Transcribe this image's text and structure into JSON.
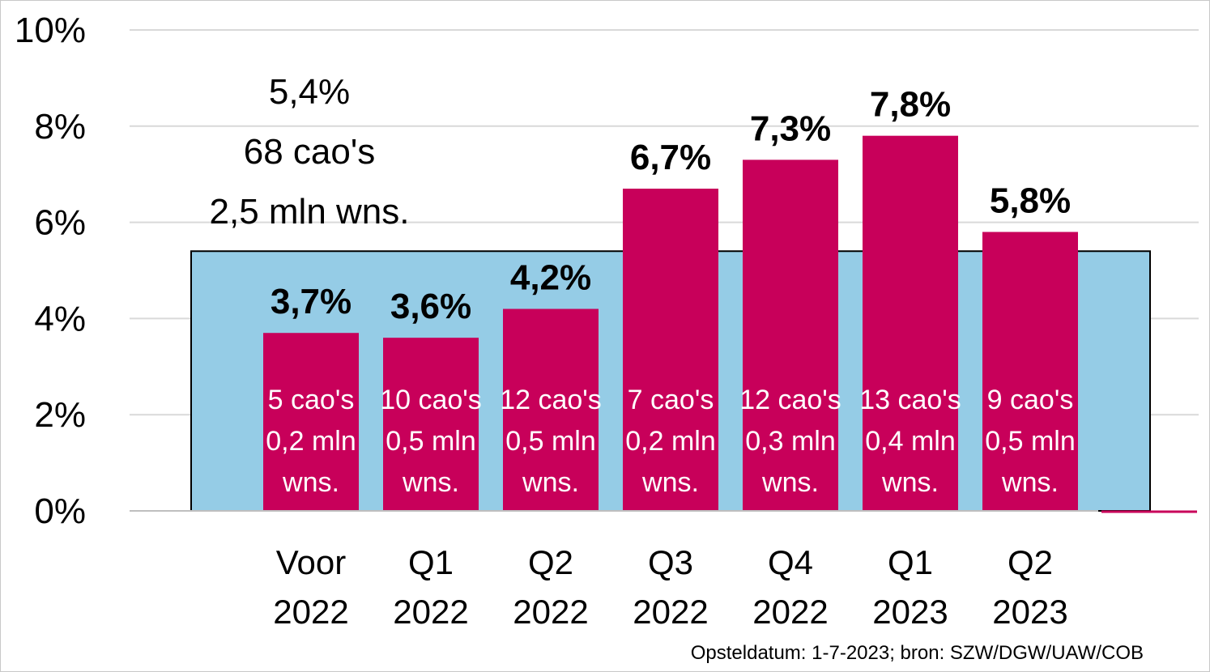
{
  "chart_data": {
    "type": "bar",
    "categories": [
      [
        "Voor",
        "2022"
      ],
      [
        "Q1",
        "2022"
      ],
      [
        "Q2",
        "2022"
      ],
      [
        "Q3",
        "2022"
      ],
      [
        "Q4",
        "2022"
      ],
      [
        "Q1",
        "2023"
      ],
      [
        "Q2",
        "2023"
      ]
    ],
    "values": [
      3.7,
      3.6,
      4.2,
      6.7,
      7.3,
      7.8,
      5.8
    ],
    "value_labels": [
      "3,7%",
      "3,6%",
      "4,2%",
      "6,7%",
      "7,3%",
      "7,8%",
      "5,8%"
    ],
    "bar_annotations": [
      [
        "5 cao's",
        "0,2 mln",
        "wns."
      ],
      [
        "10 cao's",
        "0,5 mln",
        "wns."
      ],
      [
        "12 cao's",
        "0,5 mln",
        "wns."
      ],
      [
        "7 cao's",
        "0,2 mln",
        "wns."
      ],
      [
        "12 cao's",
        "0,3 mln",
        "wns."
      ],
      [
        "13 cao's",
        "0,4 mln",
        "wns."
      ],
      [
        "9 cao's",
        "0,5 mln",
        "wns."
      ]
    ],
    "average": {
      "value": 5.4,
      "lines": [
        "5,4%",
        "68 cao's",
        "2,5 mln wns."
      ]
    },
    "yticks": [
      "0%",
      "2%",
      "4%",
      "6%",
      "8%",
      "10%"
    ],
    "ytick_values": [
      0,
      2,
      4,
      6,
      8,
      10
    ],
    "ylim": [
      0,
      10
    ],
    "grid": true,
    "colors": {
      "bar": "#c8005a",
      "average_area": "#95cce6",
      "grid": "#d9d9d9"
    }
  },
  "source_note": "Opsteldatum: 1-7-2023; bron: SZW/DGW/UAW/COB"
}
